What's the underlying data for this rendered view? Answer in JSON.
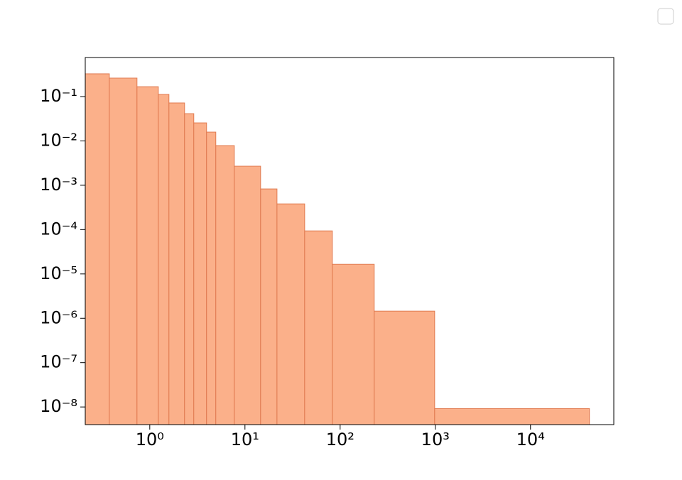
{
  "chart_data": {
    "type": "histogram",
    "bins": [
      0.21,
      0.376,
      0.734,
      1.23,
      1.59,
      2.32,
      2.9,
      3.95,
      4.94,
      7.73,
      14.6,
      21.7,
      42.4,
      82.8,
      228,
      984,
      41600
    ],
    "values": [
      0.326,
      0.261,
      0.167,
      0.112,
      0.0718,
      0.0412,
      0.0255,
      0.0158,
      0.00784,
      0.00269,
      0.000826,
      0.00038,
      9.35e-05,
      1.65e-05,
      1.45e-06,
      9.2e-09
    ],
    "color": "#fbb08a",
    "edgecolor": "#e07a50",
    "xscale": "log",
    "yscale": "log",
    "xlim": [
      0.21,
      75000
    ],
    "ylim": [
      4e-09,
      0.76
    ],
    "xticks": [
      {
        "value": 1,
        "label": "10⁰"
      },
      {
        "value": 10,
        "label": "10¹"
      },
      {
        "value": 100,
        "label": "10²"
      },
      {
        "value": 1000,
        "label": "10³"
      },
      {
        "value": 10000,
        "label": "10⁴"
      }
    ],
    "yticks": [
      {
        "value": 1e-08,
        "label": "10⁻⁸"
      },
      {
        "value": 1e-07,
        "label": "10⁻⁷"
      },
      {
        "value": 1e-06,
        "label": "10⁻⁶"
      },
      {
        "value": 1e-05,
        "label": "10⁻⁵"
      },
      {
        "value": 0.0001,
        "label": "10⁻⁴"
      },
      {
        "value": 0.001,
        "label": "10⁻³"
      },
      {
        "value": 0.01,
        "label": "10⁻²"
      },
      {
        "value": 0.1,
        "label": "10⁻¹"
      }
    ],
    "grid": false,
    "legend": "upper right"
  }
}
